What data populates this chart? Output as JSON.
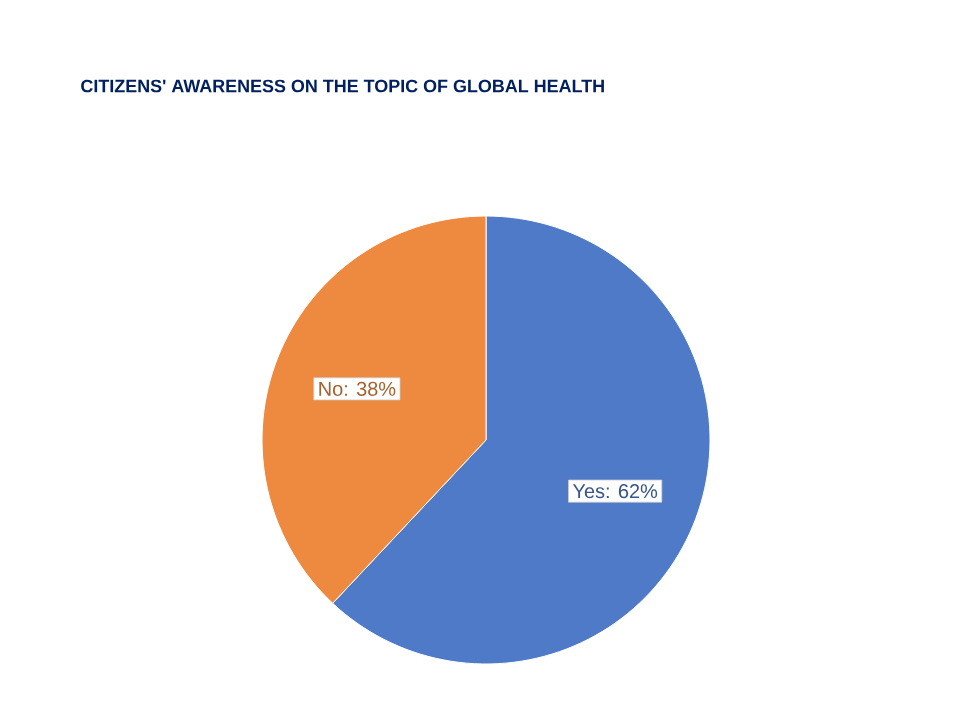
{
  "chart_data": {
    "type": "pie",
    "title": "CITIZENS' AWARENESS ON THE TOPIC OF GLOBAL HEALTH",
    "categories": [
      "Yes",
      "No"
    ],
    "values": [
      62,
      38
    ],
    "value_labels": [
      ": 62%",
      ": 38%"
    ],
    "colors": [
      "#4f7ac7",
      "#ed8a3f"
    ]
  }
}
